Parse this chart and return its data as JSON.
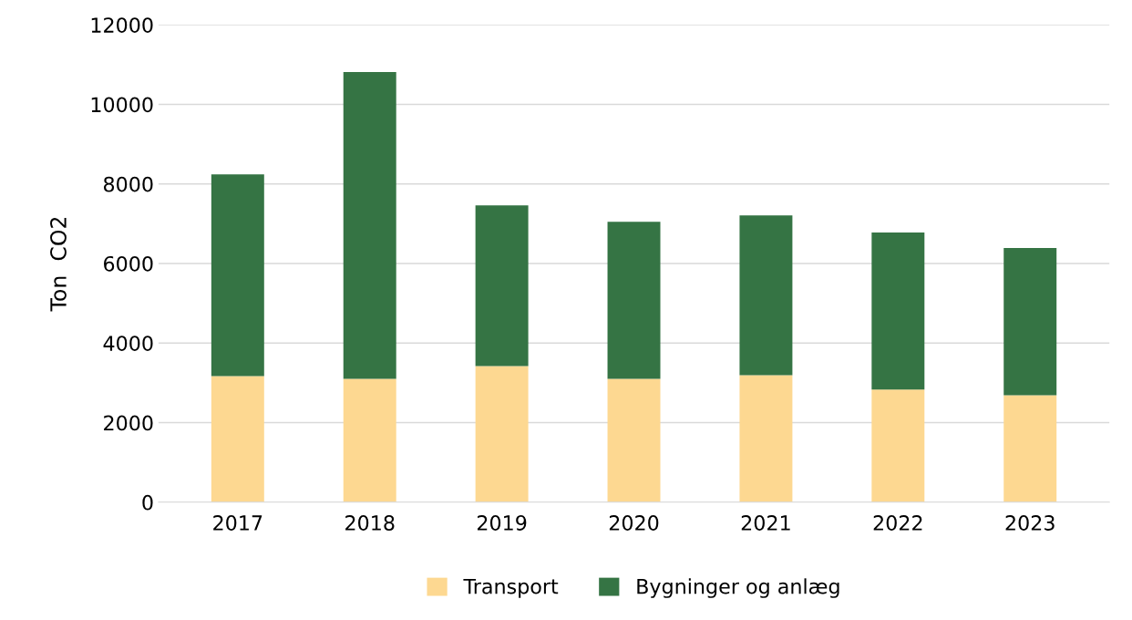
{
  "chart_data": {
    "type": "bar",
    "ylabel": "Ton  CO2",
    "stacked": true,
    "categories": [
      "2017",
      "2018",
      "2019",
      "2020",
      "2021",
      "2022",
      "2023"
    ],
    "series": [
      {
        "name": "Transport",
        "color": "#fdd891",
        "values": [
          3170,
          3100,
          3420,
          3100,
          3190,
          2830,
          2690
        ]
      },
      {
        "name": "Bygninger og anlæg",
        "color": "#357444",
        "values": [
          5070,
          7710,
          4040,
          3950,
          4020,
          3950,
          3700
        ]
      }
    ],
    "ylim": [
      0,
      12000
    ],
    "yticks": [
      0,
      2000,
      4000,
      6000,
      8000,
      10000,
      12000
    ],
    "grid": "y",
    "legend": "bottom"
  }
}
